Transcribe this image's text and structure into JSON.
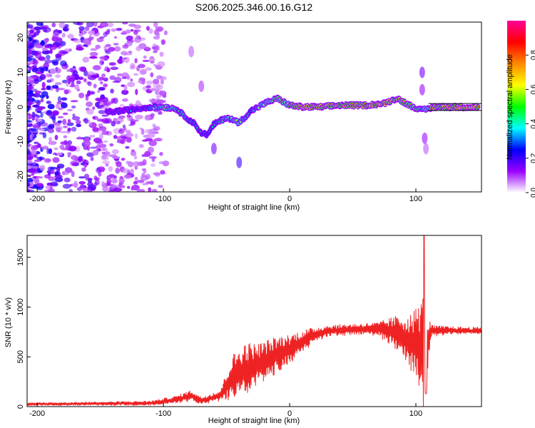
{
  "title": "S206.2025.346.00.16.G12",
  "chart_data": [
    {
      "type": "heatmap",
      "title": "",
      "xlabel": "Height of straight line (km)",
      "ylabel": "Frequency (Hz)",
      "xlim": [
        -208,
        152
      ],
      "ylim": [
        -24.5,
        24.5
      ],
      "xticks": [
        -200,
        -100,
        0,
        100
      ],
      "yticks": [
        -20,
        -10,
        0,
        10,
        20
      ],
      "colorbar": {
        "label": "Normalized spectral amplitude",
        "range": [
          0,
          1
        ],
        "ticks": [
          "0.0",
          "0.2",
          "0.4",
          "0.6",
          "0.8"
        ],
        "colors": [
          "#ffffff",
          "#9900ff",
          "#0000ff",
          "#00ffff",
          "#00ff00",
          "#ffff00",
          "#ff8800",
          "#ff0000",
          "#ff0099"
        ]
      },
      "ridge": [
        {
          "x": -145,
          "f": -1.5,
          "a": 0.35
        },
        {
          "x": -130,
          "f": -1.0,
          "a": 0.3
        },
        {
          "x": -120,
          "f": -0.5,
          "a": 0.4
        },
        {
          "x": -110,
          "f": 0.0,
          "a": 0.45
        },
        {
          "x": -100,
          "f": 0.0,
          "a": 0.65
        },
        {
          "x": -90,
          "f": -0.5,
          "a": 0.55
        },
        {
          "x": -82,
          "f": -3.0,
          "a": 0.5
        },
        {
          "x": -75,
          "f": -5.0,
          "a": 0.45
        },
        {
          "x": -70,
          "f": -7.5,
          "a": 0.4
        },
        {
          "x": -65,
          "f": -8.0,
          "a": 0.35
        },
        {
          "x": -60,
          "f": -5.0,
          "a": 0.45
        },
        {
          "x": -55,
          "f": -4.0,
          "a": 0.5
        },
        {
          "x": -50,
          "f": -3.0,
          "a": 0.55
        },
        {
          "x": -40,
          "f": -4.5,
          "a": 0.6
        },
        {
          "x": -30,
          "f": -1.0,
          "a": 0.45
        },
        {
          "x": -20,
          "f": 1.0,
          "a": 0.6
        },
        {
          "x": -10,
          "f": 2.5,
          "a": 0.7
        },
        {
          "x": 0,
          "f": 0.5,
          "a": 0.75
        },
        {
          "x": 10,
          "f": 0.0,
          "a": 0.95
        },
        {
          "x": 25,
          "f": 0.0,
          "a": 0.9
        },
        {
          "x": 40,
          "f": 0.5,
          "a": 0.85
        },
        {
          "x": 60,
          "f": 0.5,
          "a": 0.9
        },
        {
          "x": 75,
          "f": 1.0,
          "a": 0.95
        },
        {
          "x": 85,
          "f": 2.5,
          "a": 0.85
        },
        {
          "x": 95,
          "f": 0.5,
          "a": 0.8
        },
        {
          "x": 105,
          "f": -1.0,
          "a": 0.6
        },
        {
          "x": 115,
          "f": 0.0,
          "a": 0.9
        },
        {
          "x": 130,
          "f": 0.0,
          "a": 0.95
        },
        {
          "x": 150,
          "f": 0.0,
          "a": 0.9
        }
      ]
    },
    {
      "type": "line",
      "title": "",
      "xlabel": "Height of straight line (km)",
      "ylabel": "SNR (10 * v/v)",
      "xlim": [
        -208,
        152
      ],
      "ylim": [
        0,
        1720
      ],
      "xticks": [
        -200,
        -100,
        0,
        100
      ],
      "yticks": [
        0,
        500,
        1000,
        1500
      ],
      "color": "#ee2222",
      "envelope": [
        {
          "x": -208,
          "base": 25,
          "noise": 15
        },
        {
          "x": -150,
          "base": 30,
          "noise": 20
        },
        {
          "x": -110,
          "base": 35,
          "noise": 25
        },
        {
          "x": -90,
          "base": 70,
          "noise": 40
        },
        {
          "x": -78,
          "base": 110,
          "noise": 60
        },
        {
          "x": -70,
          "base": 60,
          "noise": 40
        },
        {
          "x": -55,
          "base": 110,
          "noise": 60
        },
        {
          "x": -45,
          "base": 300,
          "noise": 230
        },
        {
          "x": -35,
          "base": 370,
          "noise": 280
        },
        {
          "x": -25,
          "base": 420,
          "noise": 220
        },
        {
          "x": -10,
          "base": 520,
          "noise": 190
        },
        {
          "x": 0,
          "base": 580,
          "noise": 150
        },
        {
          "x": 10,
          "base": 650,
          "noise": 120
        },
        {
          "x": 20,
          "base": 720,
          "noise": 80
        },
        {
          "x": 30,
          "base": 760,
          "noise": 60
        },
        {
          "x": 50,
          "base": 775,
          "noise": 60
        },
        {
          "x": 70,
          "base": 780,
          "noise": 70
        },
        {
          "x": 85,
          "base": 740,
          "noise": 180
        },
        {
          "x": 97,
          "base": 640,
          "noise": 300
        },
        {
          "x": 104,
          "base": 600,
          "noise": 500
        },
        {
          "x": 107,
          "base": 500,
          "noise": 650
        },
        {
          "x": 112,
          "base": 760,
          "noise": 60
        },
        {
          "x": 130,
          "base": 765,
          "noise": 40
        },
        {
          "x": 152,
          "base": 760,
          "noise": 40
        }
      ]
    }
  ]
}
